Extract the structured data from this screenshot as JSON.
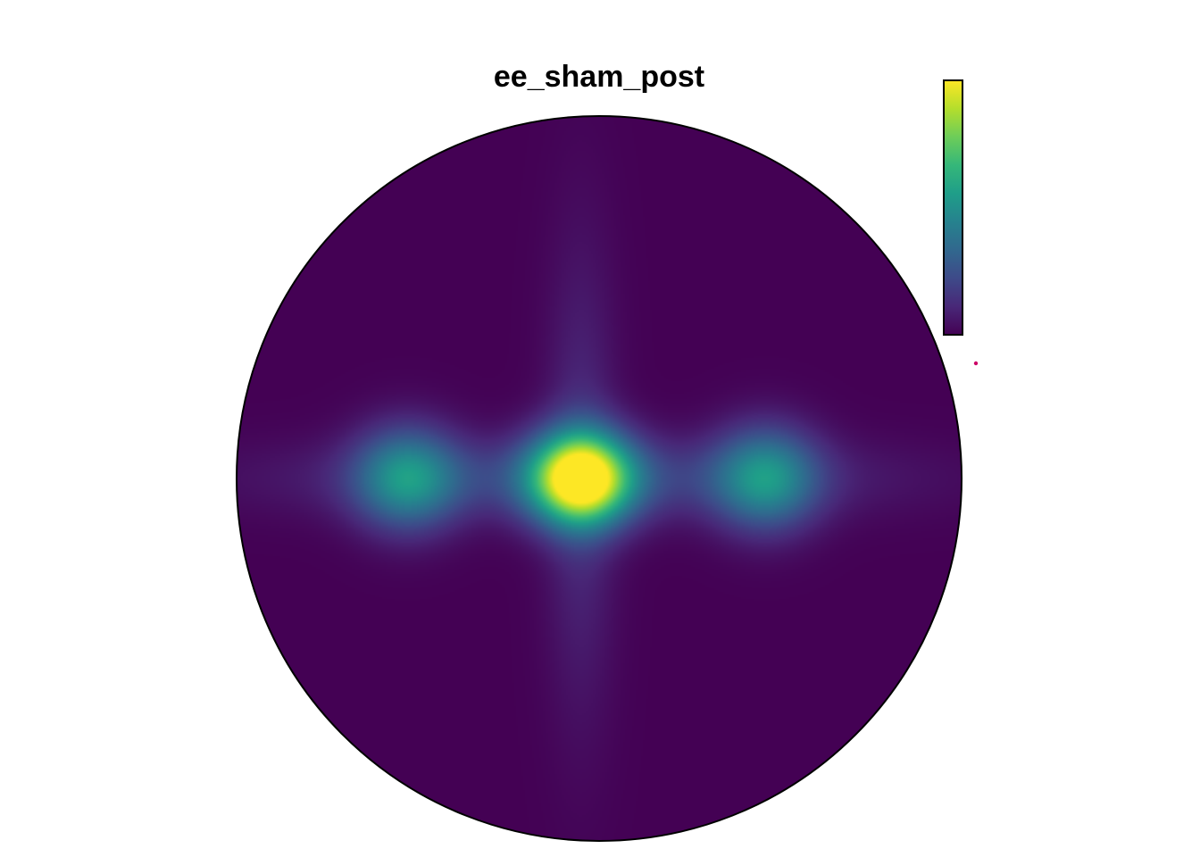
{
  "chart_data": {
    "type": "heatmap",
    "title": "ee_sham_post",
    "colormap": "viridis",
    "colormap_stops": [
      "#440154",
      "#482878",
      "#3E4A89",
      "#31688E",
      "#26828E",
      "#1F9E89",
      "#35B779",
      "#6DCD59",
      "#B4DE2C",
      "#FDE725"
    ],
    "legend": {
      "type": "colorbar",
      "placement": "top-right",
      "orientation": "vertical",
      "low_end": "bottom",
      "high_color": "#FDE725",
      "low_color": "#440154"
    },
    "grid": false,
    "domain": {
      "shape": "circle",
      "x_range": [
        -1,
        1
      ],
      "y_range": [
        -1,
        1
      ]
    },
    "hotspots": [
      {
        "name": "center",
        "x": -0.05,
        "y": 0.0,
        "sx": 0.1,
        "sy": 0.09,
        "intensity": 1.0
      },
      {
        "name": "left",
        "x": -0.53,
        "y": 0.0,
        "sx": 0.1,
        "sy": 0.1,
        "intensity": 0.45
      },
      {
        "name": "right",
        "x": 0.46,
        "y": 0.0,
        "sx": 0.1,
        "sy": 0.1,
        "intensity": 0.45
      },
      {
        "name": "horizontal-band",
        "x": -0.05,
        "y": 0.0,
        "sx": 0.55,
        "sy": 0.08,
        "intensity": 0.18
      },
      {
        "name": "vertical-band",
        "x": -0.05,
        "y": 0.0,
        "sx": 0.07,
        "sy": 0.45,
        "intensity": 0.12
      }
    ],
    "annotations": [
      {
        "type": "marker",
        "color": "#CC0066"
      }
    ]
  }
}
